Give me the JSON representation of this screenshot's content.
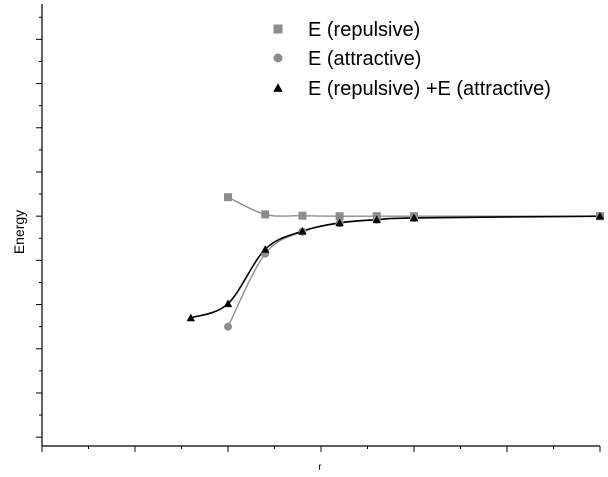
{
  "chart_data": {
    "type": "line",
    "title": "",
    "xlabel": "r",
    "ylabel": "Energy",
    "xlim": [
      0.5,
      3.5
    ],
    "ylim": [
      -5.2,
      4.8
    ],
    "x_ticks_labeled": false,
    "y_ticks_labeled": false,
    "grid": false,
    "legend_position": "top-right",
    "series": [
      {
        "name": "E (repulsive)",
        "color": "#8c8c8c",
        "marker": "square",
        "x": [
          1.5,
          1.7,
          1.9,
          2.1,
          2.3,
          2.5,
          3.5
        ],
        "y": [
          0.43,
          0.04,
          0.01,
          0.0,
          0.0,
          0.0,
          0.0
        ]
      },
      {
        "name": "E (attractive)",
        "color": "#8c8c8c",
        "marker": "circle",
        "x": [
          1.5,
          1.7,
          1.9,
          2.1,
          2.3,
          2.5,
          3.5
        ],
        "y": [
          -2.5,
          -0.85,
          -0.35,
          -0.16,
          -0.08,
          -0.04,
          0.0
        ]
      },
      {
        "name": "E (repulsive) +E (attractive)",
        "color": "#000000",
        "marker": "triangle",
        "x": [
          1.3,
          1.5,
          1.7,
          1.9,
          2.1,
          2.3,
          2.5,
          3.5
        ],
        "y": [
          -2.3,
          -1.98,
          -0.75,
          -0.34,
          -0.15,
          -0.08,
          -0.04,
          0.0
        ]
      }
    ]
  }
}
